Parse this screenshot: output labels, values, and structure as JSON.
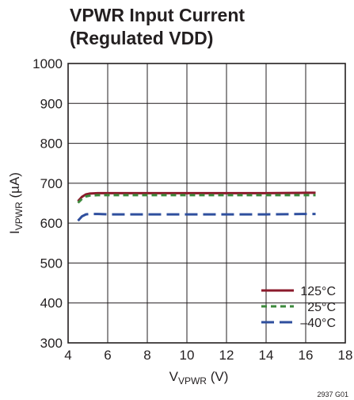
{
  "chart_data": {
    "type": "line",
    "title_lines": [
      "VPWR Input Current",
      "(Regulated VDD)"
    ],
    "xlabel": {
      "main": "V",
      "sub": "VPWR",
      "unit": " (V)"
    },
    "ylabel": {
      "main": "I",
      "sub": "VPWR",
      "unit": " (µA)"
    },
    "xlim": [
      4,
      18
    ],
    "ylim": [
      300,
      1000
    ],
    "xticks": [
      4,
      6,
      8,
      10,
      12,
      14,
      16,
      18
    ],
    "yticks": [
      300,
      400,
      500,
      600,
      700,
      800,
      900,
      1000
    ],
    "grid": true,
    "legend_position": "bottom-right",
    "figure_id": "2937 G01",
    "series": [
      {
        "name": "125°C",
        "color": "#8b1a2b",
        "dash": "solid",
        "x": [
          4.5,
          4.7,
          4.9,
          5.1,
          5.5,
          6,
          8,
          10,
          12,
          14,
          16,
          16.5
        ],
        "y": [
          655,
          666,
          672,
          674,
          675,
          675,
          675,
          675,
          675,
          675,
          676,
          676
        ]
      },
      {
        "name": "25°C",
        "color": "#3c8a3c",
        "dash": "short",
        "x": [
          4.5,
          4.7,
          4.9,
          5.1,
          5.5,
          6,
          8,
          10,
          12,
          14,
          16,
          16.5
        ],
        "y": [
          651,
          661,
          667,
          669,
          670,
          670,
          670,
          670,
          670,
          670,
          670,
          670
        ]
      },
      {
        "name": "–40°C",
        "color": "#2f4f9e",
        "dash": "long",
        "x": [
          4.5,
          4.7,
          4.9,
          5.1,
          5.5,
          6,
          8,
          10,
          12,
          14,
          16,
          16.5
        ],
        "y": [
          606,
          617,
          622,
          623,
          623,
          622,
          622,
          622,
          622,
          622,
          623,
          623
        ]
      }
    ]
  }
}
